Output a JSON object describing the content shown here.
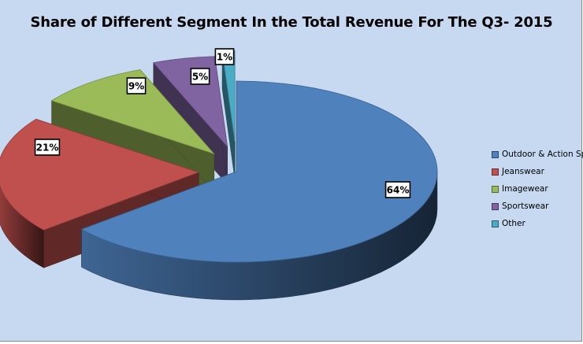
{
  "chart_data": {
    "type": "pie",
    "title": "Share of Different Segment In the Total Revenue For The Q3- 2015",
    "categories": [
      "Outdoor & Action Spo",
      "Jeanswear",
      "Imagewear",
      "Sportswear",
      "Other"
    ],
    "values": [
      64,
      21,
      9,
      5,
      1
    ],
    "data_labels": [
      "64%",
      "21%",
      "9%",
      "5%",
      "1%"
    ],
    "colors": [
      "#4f81bd",
      "#c0504d",
      "#9bbb59",
      "#8064a2",
      "#4bacc6"
    ],
    "style": "3d-exploded",
    "legend": "right"
  }
}
